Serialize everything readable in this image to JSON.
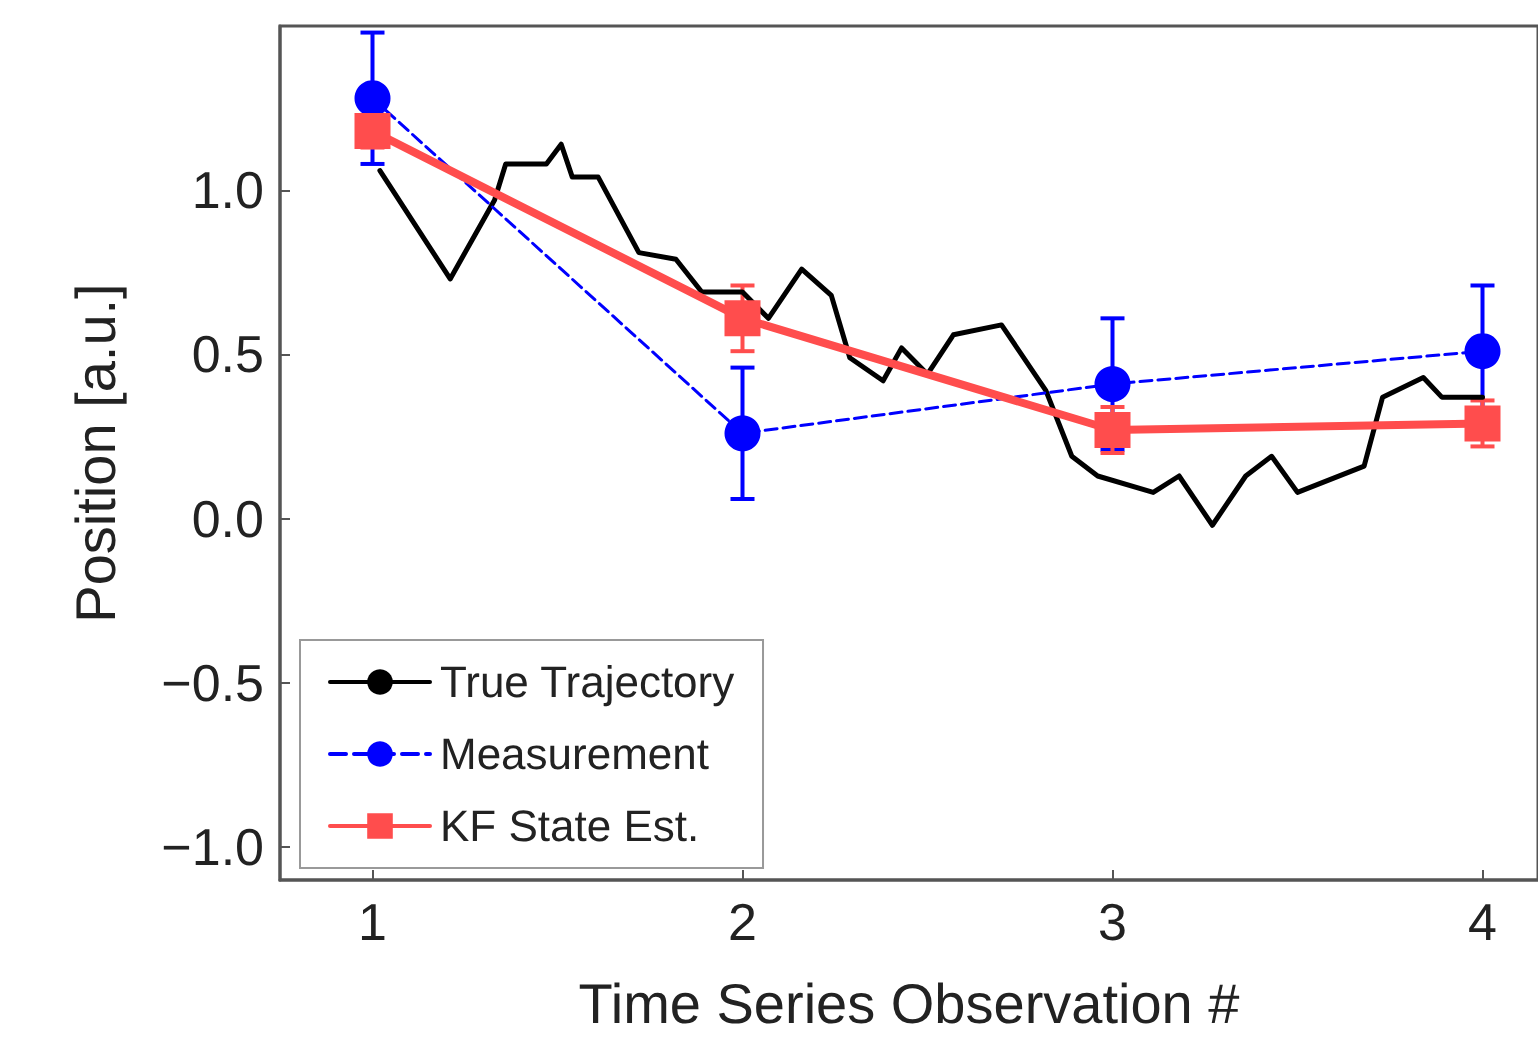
{
  "chart_data": {
    "type": "line",
    "xlabel": "Time Series Observation #",
    "ylabel": "Position [a.u.]",
    "xlim": [
      0.75,
      4.15
    ],
    "xticks": [
      1,
      2,
      3,
      4
    ],
    "ylim": [
      -1.1,
      1.5
    ],
    "yticks": [
      {
        "value": -1,
        "label": "−1.0"
      },
      {
        "value": -0.5,
        "label": "−0.5"
      },
      {
        "value": 0,
        "label": "0.0"
      },
      {
        "value": 0.5,
        "label": "0.5"
      },
      {
        "value": 1,
        "label": "1.0"
      }
    ],
    "grid": false,
    "legend": "bottom left",
    "series": [
      {
        "name": "True Trajectory",
        "color": "#000000",
        "marker": "none",
        "line_style": "solid",
        "x": [
          1.02,
          1.21,
          1.33,
          1.36,
          1.47,
          1.51,
          1.54,
          1.61,
          1.72,
          1.82,
          1.89,
          2.0,
          2.07,
          2.16,
          2.24,
          2.29,
          2.38,
          2.43,
          2.5,
          2.57,
          2.7,
          2.82,
          2.89,
          2.96,
          3.11,
          3.18,
          3.27,
          3.36,
          3.43,
          3.5,
          3.68,
          3.73,
          3.84,
          3.89,
          4.0
        ],
        "values": [
          1.06,
          0.73,
          0.97,
          1.08,
          1.08,
          1.14,
          1.04,
          1.04,
          0.81,
          0.79,
          0.69,
          0.69,
          0.61,
          0.76,
          0.68,
          0.49,
          0.42,
          0.52,
          0.44,
          0.56,
          0.59,
          0.39,
          0.19,
          0.13,
          0.08,
          0.13,
          -0.02,
          0.13,
          0.19,
          0.08,
          0.16,
          0.37,
          0.43,
          0.37,
          0.37
        ]
      },
      {
        "name": "Measurement",
        "color": "#0000ff",
        "marker": "circle",
        "line_style": "dashed",
        "x": [
          1,
          2,
          3,
          4
        ],
        "values": [
          1.28,
          0.26,
          0.41,
          0.51
        ],
        "errors": [
          0.2,
          0.2,
          0.2,
          0.2
        ]
      },
      {
        "name": "KF State Est.",
        "color": "#ff4d4d",
        "marker": "square",
        "line_style": "solid",
        "x": [
          1,
          2,
          3,
          4
        ],
        "values": [
          1.18,
          0.61,
          0.27,
          0.29
        ],
        "errors": [
          0.05,
          0.1,
          0.07,
          0.07
        ]
      }
    ]
  }
}
